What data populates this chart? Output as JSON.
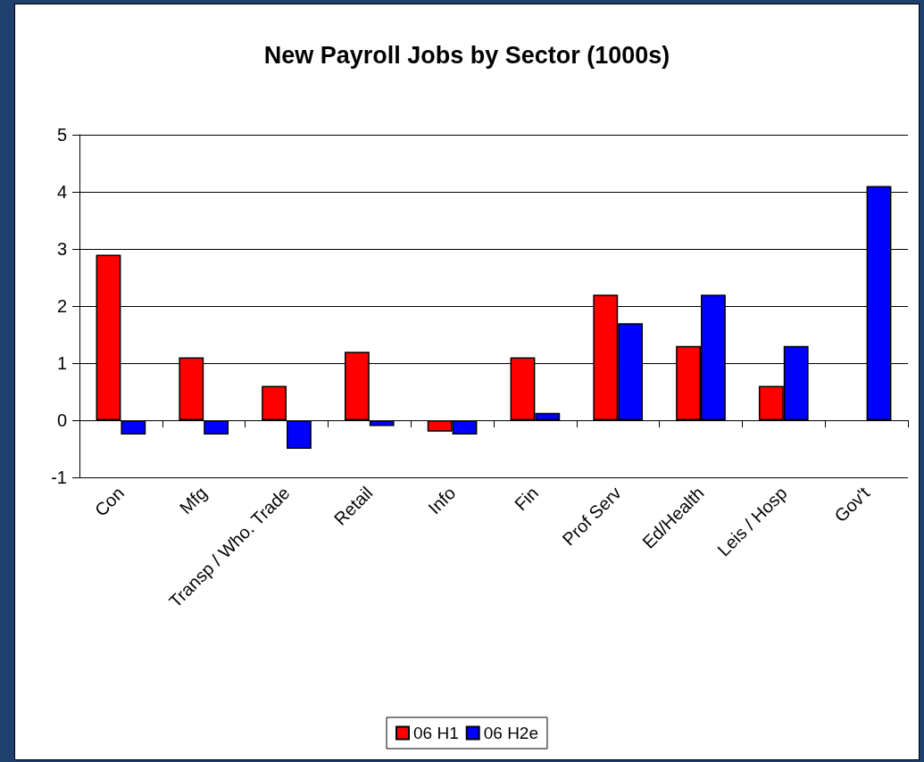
{
  "chart_data": {
    "type": "bar",
    "title": "New Payroll Jobs by Sector (1000s)",
    "categories": [
      "Con",
      "Mfg",
      "Transp / Who. Trade",
      "Retail",
      "Info",
      "Fin",
      "Prof Serv",
      "Ed/Health",
      "Leis / Hosp",
      "Gov't"
    ],
    "series": [
      {
        "name": "06 H1",
        "color": "#ff0000",
        "values": [
          2.9,
          1.1,
          0.6,
          1.2,
          -0.2,
          1.1,
          2.2,
          1.3,
          0.6,
          null
        ]
      },
      {
        "name": "06 H2e",
        "color": "#0000ff",
        "values": [
          -0.25,
          -0.25,
          -0.5,
          -0.1,
          -0.25,
          0.13,
          1.7,
          2.2,
          1.3,
          4.1
        ]
      }
    ],
    "ylim": [
      -1,
      5
    ],
    "yticks": [
      -1,
      0,
      1,
      2,
      3,
      4,
      5
    ],
    "grid": "y",
    "legend": "bottom"
  }
}
